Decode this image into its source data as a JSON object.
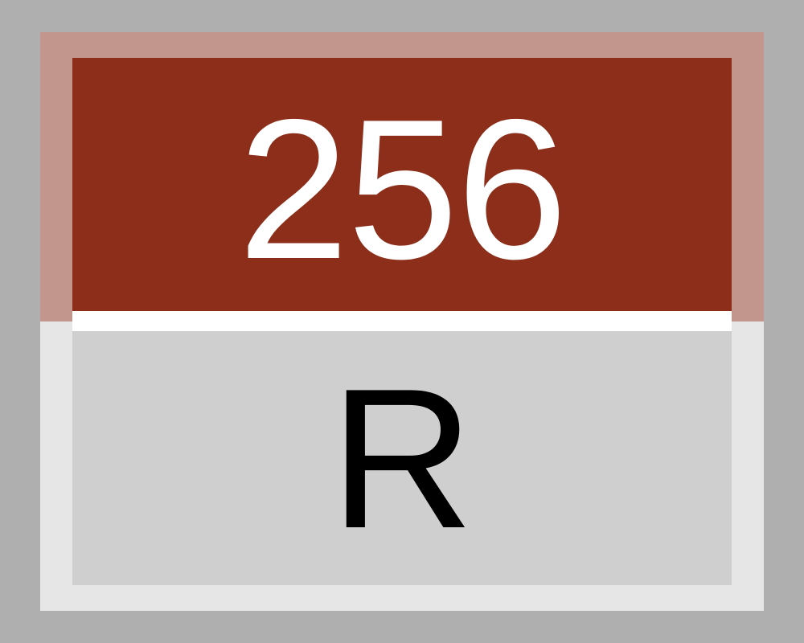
{
  "sign": {
    "number": "256",
    "letter": "R"
  },
  "colors": {
    "background": "#afafaf",
    "outer_frame": "#e6e6e6",
    "top_frame": "#c3968d",
    "top_panel": "#8c2e1a",
    "separator": "#ffffff",
    "bottom_panel": "#cfcfcf",
    "number_text": "#ffffff",
    "letter_text": "#000000"
  }
}
